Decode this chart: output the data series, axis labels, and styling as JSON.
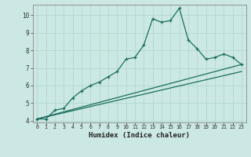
{
  "xlabel": "Humidex (Indice chaleur)",
  "bg_color": "#cce8e4",
  "grid_color": "#b0d8d0",
  "line_color": "#1a6e5e",
  "xlim": [
    -0.5,
    23.5
  ],
  "ylim": [
    3.9,
    10.6
  ],
  "yticks": [
    4,
    5,
    6,
    7,
    8,
    9,
    10
  ],
  "xticks": [
    0,
    1,
    2,
    3,
    4,
    5,
    6,
    7,
    8,
    9,
    10,
    11,
    12,
    13,
    14,
    15,
    16,
    17,
    18,
    19,
    20,
    21,
    22,
    23
  ],
  "series1_x": [
    0,
    1,
    2,
    3,
    4,
    5,
    6,
    7,
    8,
    9,
    10,
    11,
    12,
    13,
    14,
    15,
    16,
    17,
    18,
    19,
    20,
    21,
    22,
    23
  ],
  "series1_y": [
    4.1,
    4.1,
    4.6,
    4.7,
    5.3,
    5.7,
    6.0,
    6.2,
    6.5,
    6.8,
    7.5,
    7.6,
    8.3,
    9.8,
    9.6,
    9.7,
    10.4,
    8.6,
    8.1,
    7.5,
    7.6,
    7.8,
    7.6,
    7.2
  ],
  "series2_x": [
    0,
    23
  ],
  "series2_y": [
    4.1,
    7.2
  ],
  "series3_x": [
    0,
    23
  ],
  "series3_y": [
    4.1,
    6.8
  ]
}
